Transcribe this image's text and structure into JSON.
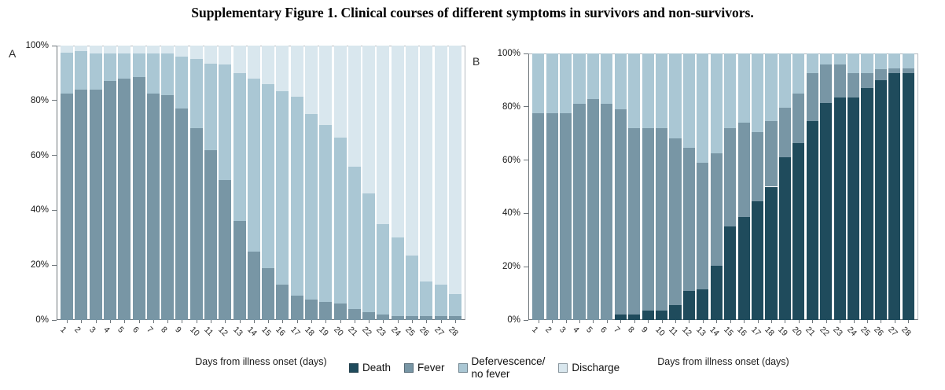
{
  "title": "Supplementary Figure 1. Clinical courses of different symptoms in survivors and non-survivors.",
  "legend": {
    "position": "bottom-center",
    "items": [
      {
        "label": "Death",
        "color": "#1f4b5c"
      },
      {
        "label": "Fever",
        "color": "#7896a5"
      },
      {
        "label": "Defervescence/\nno fever",
        "color": "#aac7d4"
      },
      {
        "label": "Discharge",
        "color": "#d9e7ee"
      }
    ]
  },
  "chart_data": [
    {
      "panel": "A",
      "type": "bar",
      "stacked": true,
      "xlabel": "Days from illness onset (days)",
      "ylabel": "",
      "ylim": [
        0,
        100
      ],
      "y_ticks": [
        "0%",
        "20%",
        "40%",
        "60%",
        "80%",
        "100%"
      ],
      "grid": false,
      "legend_position": "bottom-center",
      "categories": [
        1,
        2,
        3,
        4,
        5,
        6,
        7,
        8,
        9,
        10,
        11,
        12,
        13,
        14,
        15,
        16,
        17,
        18,
        19,
        20,
        21,
        22,
        23,
        24,
        25,
        26,
        27,
        28
      ],
      "series": [
        {
          "name": "Death",
          "values": [
            0,
            0,
            0,
            0,
            0,
            0,
            0,
            0,
            0,
            0,
            0,
            0,
            0,
            0,
            0,
            0,
            0,
            0,
            0,
            0,
            0,
            0,
            0,
            0,
            0,
            0,
            0,
            0
          ]
        },
        {
          "name": "Fever",
          "values": [
            82.5,
            84,
            84,
            87,
            88,
            88.5,
            82.5,
            82,
            77,
            70,
            62,
            51,
            36,
            25,
            19,
            13,
            9,
            7.5,
            6.5,
            6,
            4,
            3,
            2,
            1.5,
            1.5,
            1.5,
            1.5,
            1.5
          ]
        },
        {
          "name": "Defervescence/no fever",
          "values": [
            15,
            14,
            13,
            10,
            9,
            8.5,
            14.5,
            15,
            19,
            25,
            31.5,
            42,
            54,
            63,
            67,
            70.5,
            72.5,
            67.5,
            64.5,
            60.5,
            52,
            43,
            33,
            28.5,
            22,
            12.5,
            11.5,
            8
          ]
        },
        {
          "name": "Discharge",
          "values": [
            2.5,
            2,
            3,
            3,
            3,
            3,
            3,
            3,
            4,
            5,
            6.5,
            7,
            10,
            12,
            14,
            16.5,
            18.5,
            25,
            29,
            33.5,
            44,
            54,
            65,
            70,
            76.5,
            86,
            87,
            90.5
          ]
        }
      ]
    },
    {
      "panel": "B",
      "type": "bar",
      "stacked": true,
      "xlabel": "Days from illness onset (days)",
      "ylabel": "",
      "ylim": [
        0,
        100
      ],
      "y_ticks": [
        "0%",
        "20%",
        "40%",
        "60%",
        "80%",
        "100%"
      ],
      "grid": false,
      "legend_position": "bottom-center",
      "categories": [
        1,
        2,
        3,
        4,
        5,
        6,
        7,
        8,
        9,
        10,
        11,
        12,
        13,
        14,
        15,
        16,
        17,
        18,
        19,
        20,
        21,
        22,
        23,
        24,
        25,
        26,
        27,
        28
      ],
      "series": [
        {
          "name": "Death",
          "values": [
            0,
            0,
            0,
            0,
            0,
            0,
            2,
            2,
            3.5,
            3.5,
            5.5,
            11,
            11.5,
            20.5,
            35,
            38.5,
            44.5,
            50,
            61,
            66.5,
            74.5,
            81.5,
            83.5,
            83.5,
            87,
            90,
            92.5,
            92.5
          ]
        },
        {
          "name": "Fever",
          "values": [
            77.5,
            77.5,
            77.5,
            81,
            83,
            81,
            77,
            70,
            68.5,
            68.5,
            62.5,
            53.5,
            47.5,
            42,
            37,
            35.5,
            26,
            24.5,
            18.5,
            18.5,
            18,
            14.5,
            12.5,
            9,
            5.5,
            4,
            2,
            2
          ]
        },
        {
          "name": "Defervescence/no fever",
          "values": [
            22.5,
            22.5,
            22.5,
            19,
            17,
            19,
            21,
            28,
            28,
            28,
            32,
            35.5,
            41,
            37.5,
            28,
            26,
            29.5,
            25.5,
            20.5,
            15,
            7.5,
            4,
            4,
            7.5,
            7.5,
            6,
            5.5,
            5.5
          ]
        },
        {
          "name": "Discharge",
          "values": [
            0,
            0,
            0,
            0,
            0,
            0,
            0,
            0,
            0,
            0,
            0,
            0,
            0,
            0,
            0,
            0,
            0,
            0,
            0,
            0,
            0,
            0,
            0,
            0,
            0,
            0,
            0,
            0
          ]
        }
      ]
    }
  ]
}
